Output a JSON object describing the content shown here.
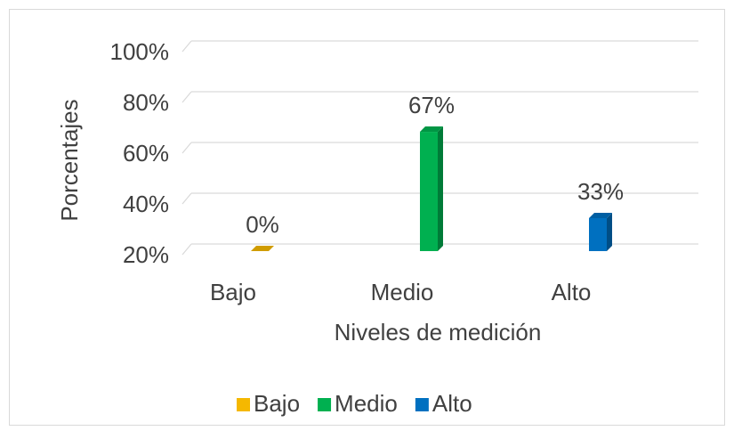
{
  "chart_data": {
    "type": "bar3d",
    "x_label": "Niveles de medición",
    "y_label": "Porcentajes",
    "categories": [
      "Bajo",
      "Medio",
      "Alto"
    ],
    "values": [
      0,
      67,
      33
    ],
    "value_labels": [
      "0%",
      "67%",
      "33%"
    ],
    "colors": [
      "#f5b800",
      "#00b050",
      "#0070c0"
    ],
    "ylim": [
      20,
      100
    ],
    "yticks": [
      {
        "value": 20,
        "label": "20%"
      },
      {
        "value": 40,
        "label": "40%"
      },
      {
        "value": 60,
        "label": "60%"
      },
      {
        "value": 80,
        "label": "80%"
      },
      {
        "value": 100,
        "label": "100%"
      }
    ],
    "grid": true,
    "legend": "bottom"
  }
}
